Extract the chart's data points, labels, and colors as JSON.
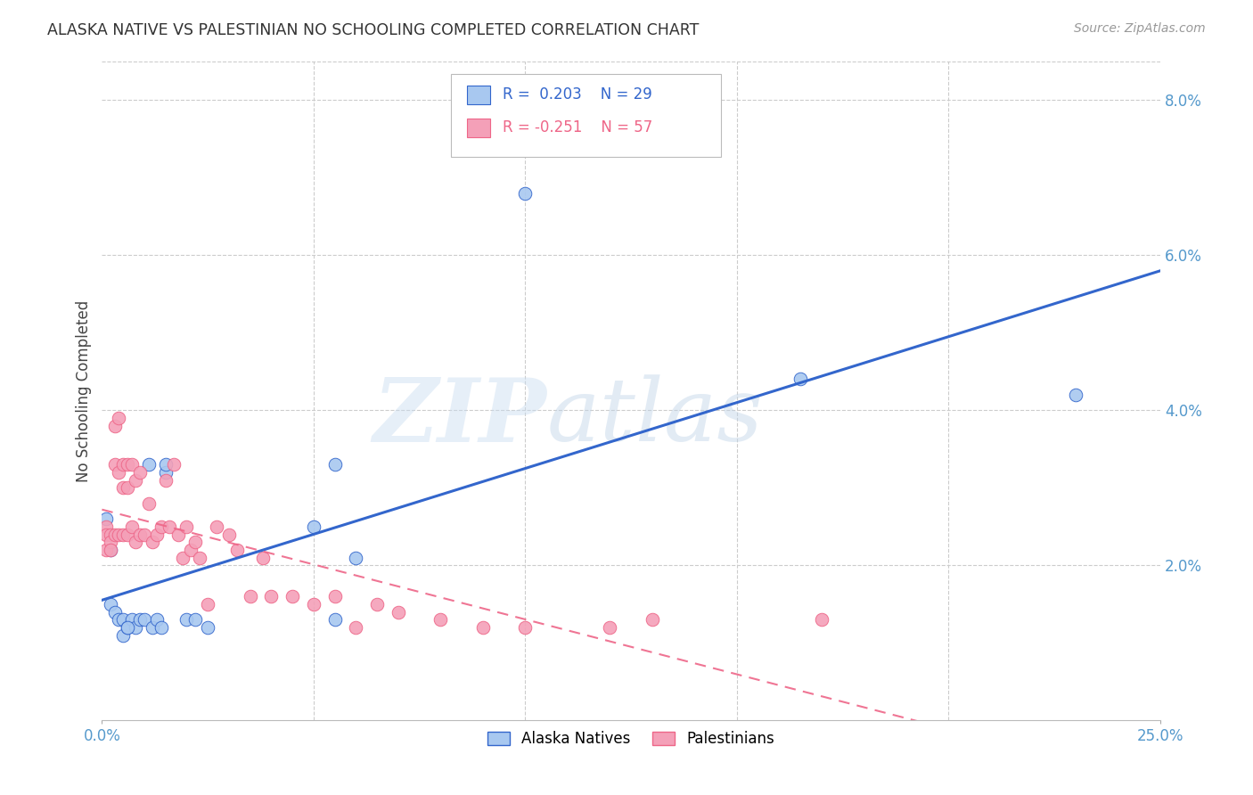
{
  "title": "ALASKA NATIVE VS PALESTINIAN NO SCHOOLING COMPLETED CORRELATION CHART",
  "source": "Source: ZipAtlas.com",
  "ylabel": "No Schooling Completed",
  "yticks": [
    0.0,
    0.02,
    0.04,
    0.06,
    0.08
  ],
  "ytick_labels": [
    "",
    "2.0%",
    "4.0%",
    "6.0%",
    "8.0%"
  ],
  "xlim": [
    0.0,
    0.25
  ],
  "ylim": [
    0.0,
    0.085
  ],
  "blue_color": "#A8C8F0",
  "pink_color": "#F4A0B8",
  "blue_line_color": "#3366CC",
  "pink_line_color": "#EE6688",
  "background_color": "#FFFFFF",
  "grid_color": "#CCCCCC",
  "axis_color": "#5599CC",
  "alaska_natives_x": [
    0.001,
    0.002,
    0.003,
    0.004,
    0.005,
    0.005,
    0.006,
    0.007,
    0.008,
    0.009,
    0.01,
    0.011,
    0.012,
    0.013,
    0.014,
    0.015,
    0.02,
    0.022,
    0.025,
    0.05,
    0.055,
    0.06,
    0.1,
    0.165,
    0.23,
    0.002,
    0.006,
    0.015,
    0.055
  ],
  "alaska_natives_y": [
    0.026,
    0.015,
    0.014,
    0.013,
    0.013,
    0.011,
    0.012,
    0.013,
    0.012,
    0.013,
    0.013,
    0.033,
    0.012,
    0.013,
    0.012,
    0.032,
    0.013,
    0.013,
    0.012,
    0.025,
    0.013,
    0.021,
    0.068,
    0.044,
    0.042,
    0.022,
    0.012,
    0.033,
    0.033
  ],
  "palestinians_x": [
    0.001,
    0.001,
    0.001,
    0.002,
    0.002,
    0.002,
    0.003,
    0.003,
    0.003,
    0.004,
    0.004,
    0.004,
    0.005,
    0.005,
    0.005,
    0.006,
    0.006,
    0.006,
    0.007,
    0.007,
    0.008,
    0.008,
    0.009,
    0.009,
    0.01,
    0.011,
    0.012,
    0.013,
    0.014,
    0.015,
    0.016,
    0.017,
    0.018,
    0.019,
    0.02,
    0.021,
    0.022,
    0.023,
    0.025,
    0.027,
    0.03,
    0.032,
    0.035,
    0.038,
    0.04,
    0.045,
    0.05,
    0.055,
    0.06,
    0.065,
    0.07,
    0.08,
    0.09,
    0.1,
    0.12,
    0.13,
    0.17
  ],
  "palestinians_y": [
    0.025,
    0.024,
    0.022,
    0.024,
    0.023,
    0.022,
    0.038,
    0.033,
    0.024,
    0.039,
    0.032,
    0.024,
    0.033,
    0.03,
    0.024,
    0.033,
    0.03,
    0.024,
    0.033,
    0.025,
    0.031,
    0.023,
    0.032,
    0.024,
    0.024,
    0.028,
    0.023,
    0.024,
    0.025,
    0.031,
    0.025,
    0.033,
    0.024,
    0.021,
    0.025,
    0.022,
    0.023,
    0.021,
    0.015,
    0.025,
    0.024,
    0.022,
    0.016,
    0.021,
    0.016,
    0.016,
    0.015,
    0.016,
    0.012,
    0.015,
    0.014,
    0.013,
    0.012,
    0.012,
    0.012,
    0.013,
    0.013
  ],
  "legend_blue_r": "R =  0.203",
  "legend_blue_n": "N = 29",
  "legend_pink_r": "R = -0.251",
  "legend_pink_n": "N = 57"
}
